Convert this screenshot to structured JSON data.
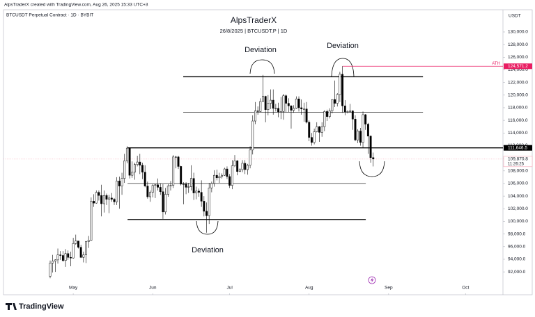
{
  "header": {
    "credit": "AlpsTraderX created with TradingView.com, Aug 26, 2025 15:33 UTC+3",
    "symbol": "BTCUSDT Perpetual Contract · 1D · BYBIT",
    "logo": "TradingView"
  },
  "chart_data": {
    "type": "candlestick",
    "title": "AlpsTraderX",
    "subtitle": "26/8/2025 | BTCUSDT.P | 1D",
    "currency": "USDT",
    "annotations": [
      "Deviation",
      "Deviation",
      "Deviation"
    ],
    "up_color": "#ffffff",
    "down_color": "#000000",
    "outline_color": "#000000",
    "xlim": [
      -18.2,
      176.6
    ],
    "xticks": [
      {
        "value": 9,
        "label": "May"
      },
      {
        "value": 40,
        "label": "Jun"
      },
      {
        "value": 70,
        "label": "Jul"
      },
      {
        "value": 101,
        "label": "Aug"
      },
      {
        "value": 132,
        "label": "Sep"
      },
      {
        "value": 162,
        "label": "Oct"
      }
    ],
    "ylim": [
      88600,
      133300
    ],
    "yticks": [
      {
        "value": 92000,
        "label": "92,000.0"
      },
      {
        "value": 94000,
        "label": "94,000.0"
      },
      {
        "value": 96000,
        "label": "96,000.0"
      },
      {
        "value": 98000,
        "label": "98,000.0"
      },
      {
        "value": 100000,
        "label": "100,000.0"
      },
      {
        "value": 102000,
        "label": "102,000.0"
      },
      {
        "value": 104000,
        "label": "104,000.0"
      },
      {
        "value": 106000,
        "label": "106,000.0"
      },
      {
        "value": 108000,
        "label": "108,000.0"
      },
      {
        "value": 110000,
        "label": "110,000.0"
      },
      {
        "value": 112000,
        "label": "112,000.0"
      },
      {
        "value": 114000,
        "label": "114,000.0"
      },
      {
        "value": 116000,
        "label": "116,000.0"
      },
      {
        "value": 118000,
        "label": "118,000.0"
      },
      {
        "value": 120000,
        "label": "120,000.0"
      },
      {
        "value": 122000,
        "label": "122,000.0"
      },
      {
        "value": 124000,
        "label": "124,000.0"
      },
      {
        "value": 126000,
        "label": "126,000.0"
      },
      {
        "value": 128000,
        "label": "128,000.0"
      },
      {
        "value": 130000,
        "label": "130,000.0"
      }
    ],
    "levels": [
      {
        "value": 122900,
        "from": 51.9,
        "to": 145.4,
        "style": "thick"
      },
      {
        "value": 117300,
        "from": 51.9,
        "to": 145.4,
        "style": "thin"
      },
      {
        "value": 111646.5,
        "label": "111,646.5",
        "from": 30.2,
        "to": 176.6,
        "style": "thick"
      },
      {
        "value": 106000,
        "from": 30.2,
        "to": 123.1,
        "style": "thin"
      },
      {
        "value": 100300,
        "from": 30.2,
        "to": 123.1,
        "style": "thick"
      }
    ],
    "ath": {
      "text": "ATH",
      "value": 124571.2,
      "label": "124,571.2",
      "from": 114,
      "color": "#e91e63"
    },
    "last": {
      "value": 109870.8,
      "label": "109,870.8",
      "countdown": "11:26:25",
      "color": "#f7a8b8"
    },
    "candles": [
      [
        91300,
        93800,
        91000,
        93400
      ],
      [
        93400,
        94700,
        91900,
        93700
      ],
      [
        93700,
        94000,
        92000,
        93900
      ],
      [
        93900,
        95700,
        93300,
        94700
      ],
      [
        94700,
        95300,
        93900,
        94600
      ],
      [
        94600,
        95300,
        93600,
        93800
      ],
      [
        93800,
        95600,
        92800,
        94900
      ],
      [
        94900,
        95400,
        93900,
        94300
      ],
      [
        94300,
        95200,
        92900,
        94200
      ],
      [
        94200,
        97400,
        94100,
        96500
      ],
      [
        96500,
        97900,
        96300,
        96900
      ],
      [
        96900,
        96900,
        95700,
        95900
      ],
      [
        95900,
        96300,
        94200,
        94300
      ],
      [
        94300,
        95200,
        93500,
        94700
      ],
      [
        94700,
        96900,
        93400,
        96800
      ],
      [
        96800,
        97700,
        95800,
        97000
      ],
      [
        97000,
        103800,
        96900,
        103200
      ],
      [
        103200,
        104300,
        102300,
        102900
      ],
      [
        102900,
        104900,
        102800,
        104600
      ],
      [
        104600,
        104900,
        103300,
        104100
      ],
      [
        104100,
        105800,
        100800,
        102800
      ],
      [
        102800,
        104900,
        101400,
        104100
      ],
      [
        104100,
        104400,
        102600,
        103500
      ],
      [
        103500,
        104200,
        101300,
        103700
      ],
      [
        103700,
        104500,
        103100,
        103500
      ],
      [
        103500,
        103700,
        102600,
        103100
      ],
      [
        103100,
        107000,
        102600,
        106400
      ],
      [
        106400,
        107100,
        102000,
        105600
      ],
      [
        105600,
        107700,
        104200,
        106800
      ],
      [
        106800,
        110700,
        106100,
        109600
      ],
      [
        109600,
        111900,
        109200,
        111600
      ],
      [
        111600,
        111700,
        106800,
        107300
      ],
      [
        107300,
        109500,
        106900,
        107800
      ],
      [
        107800,
        109300,
        106600,
        109000
      ],
      [
        109000,
        110400,
        108700,
        109400
      ],
      [
        109400,
        110700,
        107500,
        108900
      ],
      [
        108900,
        109300,
        106700,
        107800
      ],
      [
        107800,
        108900,
        105400,
        105600
      ],
      [
        105600,
        106300,
        103600,
        103900
      ],
      [
        103900,
        104900,
        103100,
        104600
      ],
      [
        104600,
        105900,
        103800,
        105700
      ],
      [
        105700,
        105900,
        103700,
        105800
      ],
      [
        105800,
        106800,
        104900,
        105400
      ],
      [
        105400,
        106000,
        104200,
        104700
      ],
      [
        104700,
        105900,
        100400,
        101500
      ],
      [
        101500,
        105300,
        101100,
        104300
      ],
      [
        104300,
        105900,
        103900,
        105600
      ],
      [
        105600,
        106400,
        104900,
        105700
      ],
      [
        105700,
        110500,
        105300,
        110200
      ],
      [
        110200,
        110400,
        108400,
        110200
      ],
      [
        110200,
        110400,
        108300,
        108700
      ],
      [
        108700,
        108800,
        105700,
        105900
      ],
      [
        105900,
        106200,
        102700,
        105900
      ],
      [
        105900,
        106200,
        104300,
        105400
      ],
      [
        105400,
        106100,
        104500,
        105500
      ],
      [
        105500,
        108900,
        104900,
        106800
      ],
      [
        106800,
        107700,
        103400,
        104500
      ],
      [
        104500,
        105500,
        103500,
        104800
      ],
      [
        104800,
        105200,
        103900,
        104600
      ],
      [
        104600,
        106500,
        102300,
        103200
      ],
      [
        103200,
        104000,
        100800,
        101600
      ],
      [
        101600,
        103000,
        98200,
        100900
      ],
      [
        100900,
        106100,
        99600,
        105300
      ],
      [
        105300,
        106300,
        104600,
        106000
      ],
      [
        106000,
        108100,
        105500,
        107300
      ],
      [
        107300,
        108200,
        106500,
        106900
      ],
      [
        106900,
        107700,
        106100,
        107100
      ],
      [
        107100,
        107600,
        106800,
        107300
      ],
      [
        107300,
        108500,
        107200,
        108300
      ],
      [
        108300,
        108700,
        106700,
        107100
      ],
      [
        107100,
        107500,
        105300,
        105700
      ],
      [
        105700,
        109700,
        105100,
        108800
      ],
      [
        108800,
        110500,
        108600,
        109600
      ],
      [
        109600,
        109700,
        107300,
        107900
      ],
      [
        107900,
        108400,
        107800,
        108200
      ],
      [
        108200,
        109700,
        107800,
        109200
      ],
      [
        109200,
        109700,
        107500,
        108200
      ],
      [
        108200,
        109100,
        107400,
        108900
      ],
      [
        108900,
        111900,
        108400,
        111300
      ],
      [
        111300,
        116800,
        110600,
        115900
      ],
      [
        115900,
        118900,
        115400,
        117500
      ],
      [
        117500,
        118200,
        116900,
        117400
      ],
      [
        117400,
        119500,
        117300,
        119000
      ],
      [
        119000,
        123200,
        118900,
        119800
      ],
      [
        119800,
        119900,
        115700,
        117700
      ],
      [
        117700,
        120000,
        116800,
        118700
      ],
      [
        118700,
        120900,
        117800,
        119200
      ],
      [
        119200,
        120900,
        116900,
        117900
      ],
      [
        117900,
        118600,
        117400,
        117900
      ],
      [
        117900,
        118800,
        116500,
        117300
      ],
      [
        117300,
        119700,
        116200,
        117400
      ],
      [
        117400,
        120200,
        116100,
        119900
      ],
      [
        119900,
        120100,
        117300,
        118700
      ],
      [
        118700,
        119500,
        117300,
        118300
      ],
      [
        118300,
        118400,
        114700,
        117600
      ],
      [
        117600,
        118400,
        117200,
        117900
      ],
      [
        117900,
        119800,
        117800,
        119400
      ],
      [
        119400,
        119800,
        117400,
        118000
      ],
      [
        118000,
        119300,
        116900,
        117800
      ],
      [
        117800,
        118800,
        115800,
        117800
      ],
      [
        117800,
        118900,
        115500,
        115700
      ],
      [
        115700,
        116000,
        112700,
        113300
      ],
      [
        113300,
        114000,
        112000,
        112500
      ],
      [
        112500,
        114700,
        112200,
        114200
      ],
      [
        114200,
        115700,
        114100,
        115000
      ],
      [
        115000,
        115100,
        112600,
        114100
      ],
      [
        114100,
        115700,
        113400,
        115000
      ],
      [
        115000,
        117600,
        114300,
        117400
      ],
      [
        117400,
        117700,
        115900,
        116600
      ],
      [
        116600,
        117900,
        116300,
        117500
      ],
      [
        117500,
        119300,
        117100,
        119300
      ],
      [
        119300,
        122300,
        118100,
        118700
      ],
      [
        118700,
        120300,
        118200,
        120100
      ],
      [
        120100,
        123700,
        118900,
        123300
      ],
      [
        123300,
        124571.2,
        117200,
        118300
      ],
      [
        118300,
        119200,
        116800,
        117300
      ],
      [
        117300,
        117600,
        117100,
        117400
      ],
      [
        117400,
        118600,
        117200,
        117500
      ],
      [
        117500,
        117600,
        114500,
        116200
      ],
      [
        116200,
        116800,
        112700,
        112900
      ],
      [
        112900,
        114600,
        112400,
        114300
      ],
      [
        114300,
        114800,
        112000,
        112500
      ],
      [
        112500,
        117400,
        111700,
        116900
      ],
      [
        116900,
        117000,
        114500,
        115400
      ],
      [
        115400,
        115600,
        110700,
        113500
      ],
      [
        113500,
        113600,
        109300,
        110100
      ],
      [
        110100,
        110900,
        108700,
        109870.8
      ]
    ]
  }
}
